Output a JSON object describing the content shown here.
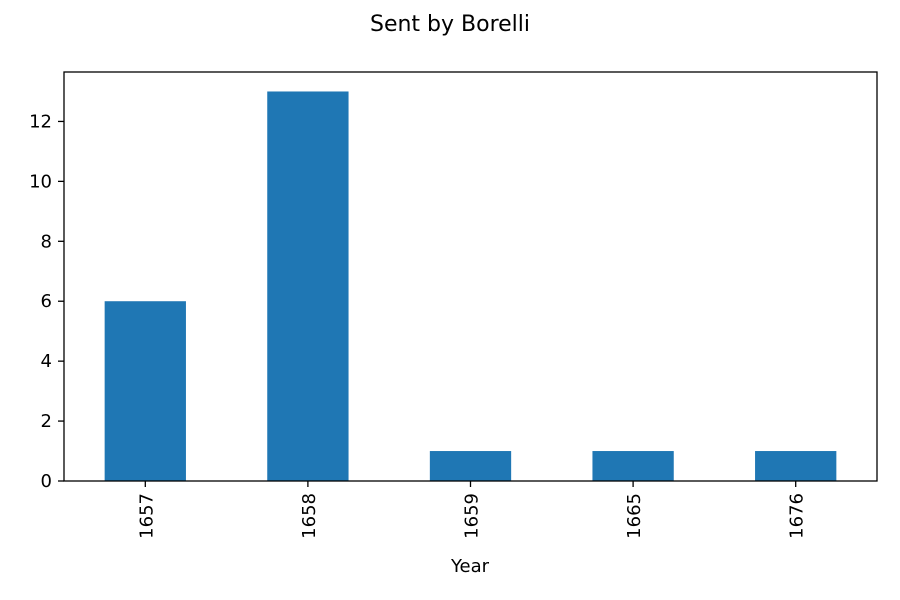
{
  "chart_data": {
    "type": "bar",
    "title": "Sent by Borelli",
    "xlabel": "Year",
    "ylabel": "",
    "categories": [
      "1657",
      "1658",
      "1659",
      "1665",
      "1676"
    ],
    "values": [
      6,
      13,
      1,
      1,
      1
    ],
    "ylim": [
      0,
      13.65
    ],
    "yticks": [
      0,
      2,
      4,
      6,
      8,
      10,
      12
    ],
    "ytick_labels": [
      "0",
      "2",
      "4",
      "6",
      "8",
      "10",
      "12"
    ],
    "bar_color": "#1f77b4",
    "grid": false,
    "legend": "none",
    "xtick_rotation": "vertical"
  }
}
